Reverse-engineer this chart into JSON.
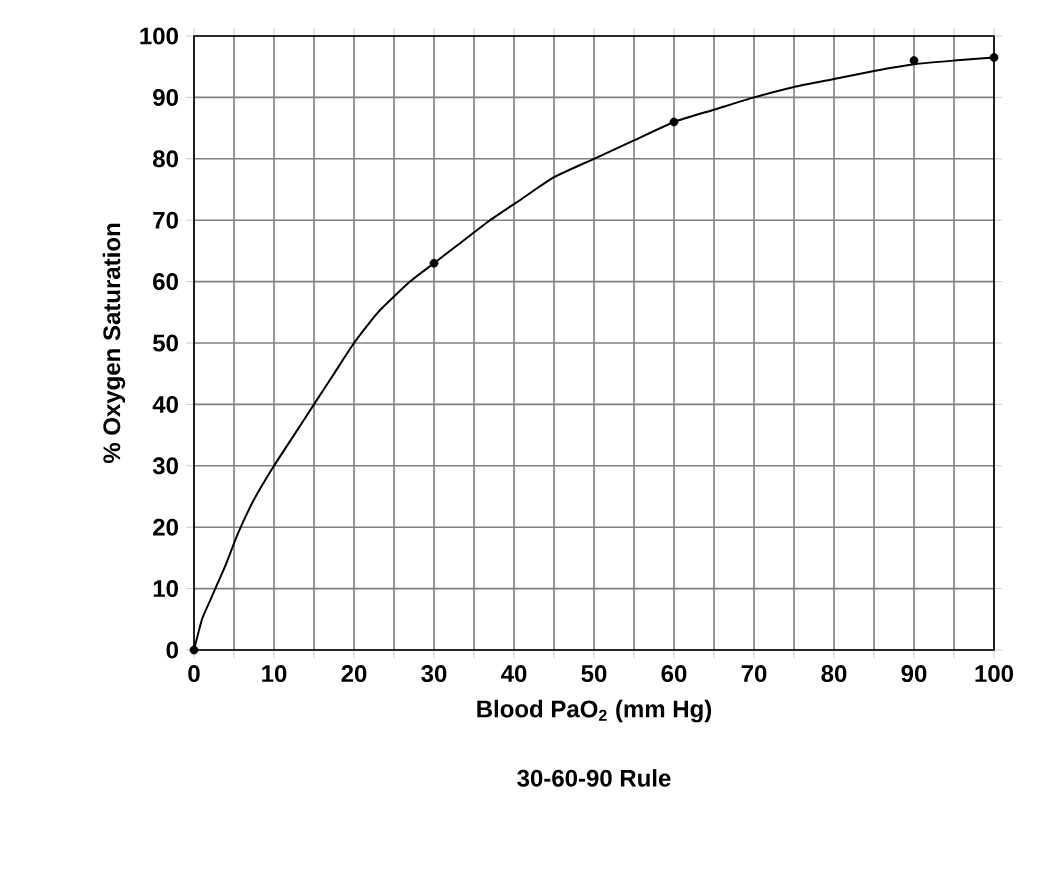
{
  "chart_data": {
    "type": "line",
    "title": "30-60-90 Rule",
    "xlabel": "Blood PaO$_{2}$ (mm Hg)",
    "ylabel": "% Oxygen Saturation",
    "xlim": [
      0,
      100
    ],
    "ylim": [
      0,
      100
    ],
    "xticks": [
      0,
      {
        "value": 5,
        "label": null
      },
      10,
      {
        "value": 15,
        "label": null
      },
      20,
      {
        "value": 25,
        "label": null
      },
      30,
      {
        "value": 35,
        "label": null
      },
      40,
      {
        "value": 45,
        "label": null
      },
      50,
      {
        "value": 55,
        "label": null
      },
      60,
      {
        "value": 65,
        "label": null
      },
      70,
      {
        "value": 75,
        "label": null
      },
      80,
      {
        "value": 85,
        "label": null
      },
      90,
      {
        "value": 95,
        "label": null
      },
      100
    ],
    "yticks": [
      0,
      10,
      20,
      30,
      40,
      50,
      60,
      70,
      80,
      90,
      100
    ],
    "grid": true,
    "series": [
      {
        "color": "#000000",
        "x": [
          0,
          1,
          2,
          3,
          4,
          5.5,
          7.5,
          10,
          12.5,
          15,
          17.5,
          20,
          23,
          27,
          30,
          33,
          37,
          41,
          45,
          50,
          55,
          60,
          65,
          70,
          75,
          80,
          85,
          90,
          95,
          100
        ],
        "values": [
          0,
          5,
          8,
          11,
          14,
          19,
          24.5,
          30,
          35,
          40,
          45,
          50,
          55,
          60,
          63,
          66,
          70,
          73.5,
          77,
          80,
          83,
          86,
          88,
          90,
          91.7,
          93,
          94.3,
          95.4,
          96,
          96.5
        ]
      },
      {
        "type": "scatter",
        "marker": "circle",
        "color": "#000000",
        "x": [
          0,
          30,
          60,
          90,
          100
        ],
        "values": [
          0,
          63,
          86,
          96,
          96.5
        ]
      }
    ]
  }
}
